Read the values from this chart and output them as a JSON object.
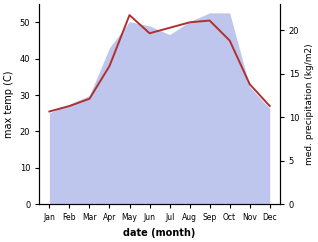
{
  "months": [
    "Jan",
    "Feb",
    "Mar",
    "Apr",
    "May",
    "Jun",
    "Jul",
    "Aug",
    "Sep",
    "Oct",
    "Nov",
    "Dec"
  ],
  "max_temp": [
    25.5,
    27.0,
    29.0,
    38.0,
    52.0,
    47.0,
    48.5,
    50.0,
    50.5,
    45.0,
    33.0,
    27.0
  ],
  "precipitation": [
    10.5,
    11.5,
    12.5,
    18.0,
    21.0,
    20.5,
    19.5,
    21.0,
    22.0,
    22.0,
    13.5,
    11.0
  ],
  "temp_color": "#b03030",
  "precip_fill_color": "#aab4e8",
  "precip_fill_alpha": 0.75,
  "ylabel_left": "max temp (C)",
  "ylabel_right": "med. precipitation (kg/m2)",
  "xlabel": "date (month)",
  "ylim_left": [
    0,
    55
  ],
  "ylim_right": [
    0,
    23.0
  ],
  "yticks_left": [
    0,
    10,
    20,
    30,
    40,
    50
  ],
  "yticks_right": [
    0,
    5,
    10,
    15,
    20
  ],
  "fig_width": 3.18,
  "fig_height": 2.42,
  "dpi": 100
}
